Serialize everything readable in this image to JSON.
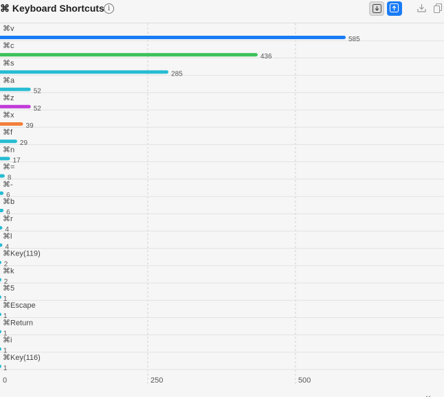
{
  "header": {
    "title": "⌘ Keyboard Shortcuts",
    "info_icon": "info-circle-icon",
    "buttons": [
      "sort-descending-icon",
      "sort-ascending-icon",
      "download-icon",
      "copy-icon"
    ]
  },
  "chart_data": {
    "type": "bar",
    "orientation": "horizontal",
    "categories": [
      "⌘v",
      "⌘c",
      "⌘s",
      "⌘a",
      "⌘z",
      "⌘x",
      "⌘f",
      "⌘n",
      "⌘=",
      "⌘-",
      "⌘b",
      "⌘r",
      "⌘l",
      "⌘Key(119)",
      "⌘k",
      "⌘5",
      "⌘Escape",
      "⌘Return",
      "⌘i",
      "⌘Key(116)"
    ],
    "values": [
      585,
      436,
      285,
      52,
      52,
      39,
      29,
      17,
      8,
      6,
      6,
      4,
      4,
      2,
      2,
      1,
      1,
      1,
      1,
      1
    ],
    "colors": [
      "#1a7cf5",
      "#3cc15a",
      "#26bcd2",
      "#26bcd2",
      "#c03ad8",
      "#f2803a",
      "#26bcd2",
      "#26bcd2",
      "#26bcd2",
      "#26bcd2",
      "#26bcd2",
      "#26bcd2",
      "#26bcd2",
      "#26bcd2",
      "#26bcd2",
      "#26bcd2",
      "#26bcd2",
      "#26bcd2",
      "#26bcd2",
      "#26bcd2"
    ],
    "xticks": [
      0,
      250,
      500
    ],
    "xlabel": "Keys",
    "xlim": [
      0,
      740
    ],
    "grid": true
  }
}
